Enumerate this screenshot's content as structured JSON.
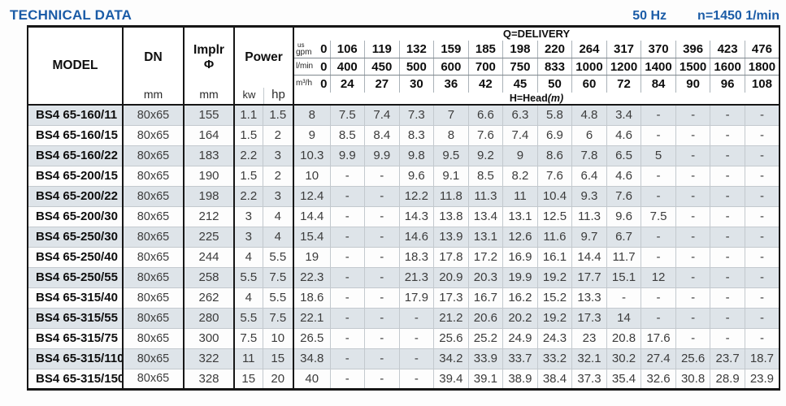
{
  "header": {
    "title": "TECHNICAL DATA",
    "frequency": "50 Hz",
    "speed": "n=1450 1/min"
  },
  "table": {
    "columns": {
      "model": "MODEL",
      "dn": "DN",
      "implr_line1": "Implr",
      "implr_symbol": "Φ",
      "power": "Power",
      "unit_mm": "mm",
      "unit_kw": "kw",
      "unit_hp": "hp"
    },
    "delivery": {
      "label": "Q=DELIVERY",
      "head_label_prefix": "H=Head",
      "head_label_unit": "(m)",
      "unit_rows": [
        {
          "label_top": "us",
          "label": "gpm",
          "zero": "0",
          "values": [
            "106",
            "119",
            "132",
            "159",
            "185",
            "198",
            "220",
            "264",
            "317",
            "370",
            "396",
            "423",
            "476"
          ]
        },
        {
          "label": "l/min",
          "zero": "0",
          "values": [
            "400",
            "450",
            "500",
            "600",
            "700",
            "750",
            "833",
            "1000",
            "1200",
            "1400",
            "1500",
            "1600",
            "1800"
          ]
        },
        {
          "label": "m³/h",
          "zero": "0",
          "values": [
            "24",
            "27",
            "30",
            "36",
            "42",
            "45",
            "50",
            "60",
            "72",
            "84",
            "90",
            "96",
            "108"
          ]
        }
      ]
    },
    "rows": [
      {
        "model": "BS4 65-160/11",
        "dn": "80x65",
        "implr": "155",
        "kw": "1.1",
        "hp": "1.5",
        "heads": [
          "8",
          "7.5",
          "7.4",
          "7.3",
          "7",
          "6.6",
          "6.3",
          "5.8",
          "4.8",
          "3.4",
          "-",
          "-",
          "-",
          "-"
        ]
      },
      {
        "model": "BS4 65-160/15",
        "dn": "80x65",
        "implr": "164",
        "kw": "1.5",
        "hp": "2",
        "heads": [
          "9",
          "8.5",
          "8.4",
          "8.3",
          "8",
          "7.6",
          "7.4",
          "6.9",
          "6",
          "4.6",
          "-",
          "-",
          "-",
          "-"
        ]
      },
      {
        "model": "BS4 65-160/22",
        "dn": "80x65",
        "implr": "183",
        "kw": "2.2",
        "hp": "3",
        "heads": [
          "10.3",
          "9.9",
          "9.9",
          "9.8",
          "9.5",
          "9.2",
          "9",
          "8.6",
          "7.8",
          "6.5",
          "5",
          "-",
          "-",
          "-"
        ]
      },
      {
        "model": "BS4 65-200/15",
        "dn": "80x65",
        "implr": "190",
        "kw": "1.5",
        "hp": "2",
        "heads": [
          "10",
          "-",
          "-",
          "9.6",
          "9.1",
          "8.5",
          "8.2",
          "7.6",
          "6.4",
          "4.6",
          "-",
          "-",
          "-",
          "-"
        ]
      },
      {
        "model": "BS4 65-200/22",
        "dn": "80x65",
        "implr": "198",
        "kw": "2.2",
        "hp": "3",
        "heads": [
          "12.4",
          "-",
          "-",
          "12.2",
          "11.8",
          "11.3",
          "11",
          "10.4",
          "9.3",
          "7.6",
          "-",
          "-",
          "-",
          "-"
        ]
      },
      {
        "model": "BS4 65-200/30",
        "dn": "80x65",
        "implr": "212",
        "kw": "3",
        "hp": "4",
        "heads": [
          "14.4",
          "-",
          "-",
          "14.3",
          "13.8",
          "13.4",
          "13.1",
          "12.5",
          "11.3",
          "9.6",
          "7.5",
          "-",
          "-",
          "-"
        ]
      },
      {
        "model": "BS4 65-250/30",
        "dn": "80x65",
        "implr": "225",
        "kw": "3",
        "hp": "4",
        "heads": [
          "15.4",
          "-",
          "-",
          "14.6",
          "13.9",
          "13.1",
          "12.6",
          "11.6",
          "9.7",
          "6.7",
          "-",
          "-",
          "-",
          "-"
        ]
      },
      {
        "model": "BS4 65-250/40",
        "dn": "80x65",
        "implr": "244",
        "kw": "4",
        "hp": "5.5",
        "heads": [
          "19",
          "-",
          "-",
          "18.3",
          "17.8",
          "17.2",
          "16.9",
          "16.1",
          "14.4",
          "11.7",
          "-",
          "-",
          "-",
          "-"
        ]
      },
      {
        "model": "BS4 65-250/55",
        "dn": "80x65",
        "implr": "258",
        "kw": "5.5",
        "hp": "7.5",
        "heads": [
          "22.3",
          "-",
          "-",
          "21.3",
          "20.9",
          "20.3",
          "19.9",
          "19.2",
          "17.7",
          "15.1",
          "12",
          "-",
          "-",
          "-"
        ]
      },
      {
        "model": "BS4 65-315/40",
        "dn": "80x65",
        "implr": "262",
        "kw": "4",
        "hp": "5.5",
        "heads": [
          "18.6",
          "-",
          "-",
          "17.9",
          "17.3",
          "16.7",
          "16.2",
          "15.2",
          "13.3",
          "-",
          "-",
          "-",
          "-",
          "-"
        ]
      },
      {
        "model": "BS4 65-315/55",
        "dn": "80x65",
        "implr": "280",
        "kw": "5.5",
        "hp": "7.5",
        "heads": [
          "22.1",
          "-",
          "-",
          "-",
          "21.2",
          "20.6",
          "20.2",
          "19.2",
          "17.3",
          "14",
          "-",
          "-",
          "-",
          "-"
        ]
      },
      {
        "model": "BS4 65-315/75",
        "dn": "80x65",
        "implr": "300",
        "kw": "7.5",
        "hp": "10",
        "heads": [
          "26.5",
          "-",
          "-",
          "-",
          "25.6",
          "25.2",
          "24.9",
          "24.3",
          "23",
          "20.8",
          "17.6",
          "-",
          "-",
          "-"
        ]
      },
      {
        "model": "BS4 65-315/110",
        "dn": "80x65",
        "implr": "322",
        "kw": "11",
        "hp": "15",
        "heads": [
          "34.8",
          "-",
          "-",
          "-",
          "34.2",
          "33.9",
          "33.7",
          "33.2",
          "32.1",
          "30.2",
          "27.4",
          "25.6",
          "23.7",
          "18.7"
        ]
      },
      {
        "model": "BS4 65-315/150",
        "dn": "80x65",
        "implr": "328",
        "kw": "15",
        "hp": "20",
        "heads": [
          "40",
          "-",
          "-",
          "-",
          "39.4",
          "39.1",
          "38.9",
          "38.4",
          "37.3",
          "35.4",
          "32.6",
          "30.8",
          "28.9",
          "23.9"
        ]
      }
    ]
  },
  "colors": {
    "accent_blue": "#1b5ca7",
    "row_shade": "#dee4e9",
    "grid_gray": "#c3c9ce",
    "border_dark": "#161616"
  }
}
